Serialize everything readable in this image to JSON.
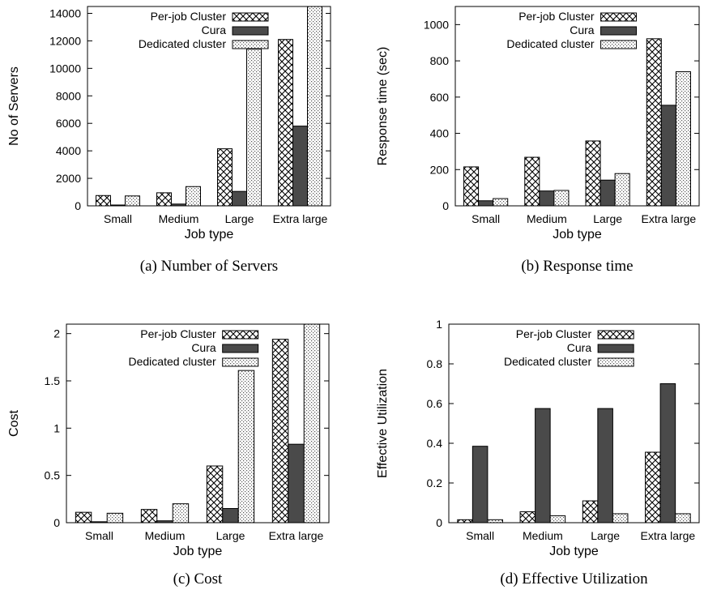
{
  "chart_data": [
    {
      "type": "bar",
      "caption": "(a) Number of Servers",
      "xlabel": "Job type",
      "ylabel": "No of Servers",
      "categories": [
        "Small",
        "Medium",
        "Large",
        "Extra large"
      ],
      "ylim": [
        0,
        14500
      ],
      "yticks": [
        0,
        2000,
        4000,
        6000,
        8000,
        10000,
        12000,
        14000
      ],
      "ytick_labels": [
        "0",
        "2000",
        "4000",
        "6000",
        "8000",
        "10000",
        "12000",
        "14000"
      ],
      "legend_position": "top-left",
      "series": [
        {
          "name": "Per-job Cluster",
          "values": [
            750,
            950,
            4150,
            12100
          ]
        },
        {
          "name": "Cura",
          "values": [
            60,
            130,
            1050,
            5800
          ]
        },
        {
          "name": "Dedicated cluster",
          "values": [
            720,
            1400,
            11400,
            14500
          ]
        }
      ]
    },
    {
      "type": "bar",
      "caption": "(b) Response time",
      "xlabel": "Job type",
      "ylabel": "Response time (sec)",
      "categories": [
        "Small",
        "Medium",
        "Large",
        "Extra large"
      ],
      "ylim": [
        0,
        1100
      ],
      "yticks": [
        0,
        200,
        400,
        600,
        800,
        1000
      ],
      "ytick_labels": [
        "0",
        "200",
        "400",
        "600",
        "800",
        "1000"
      ],
      "legend_position": "top-left",
      "series": [
        {
          "name": "Per-job Cluster",
          "values": [
            215,
            268,
            358,
            922
          ]
        },
        {
          "name": "Cura",
          "values": [
            28,
            82,
            142,
            555
          ]
        },
        {
          "name": "Dedicated cluster",
          "values": [
            40,
            85,
            178,
            740
          ]
        }
      ]
    },
    {
      "type": "bar",
      "caption": "(c) Cost",
      "xlabel": "Job type",
      "ylabel": "Cost",
      "categories": [
        "Small",
        "Medium",
        "Large",
        "Extra large"
      ],
      "ylim": [
        0,
        2.1
      ],
      "yticks": [
        0,
        0.5,
        1,
        1.5,
        2
      ],
      "ytick_labels": [
        "0",
        "0.5",
        "1",
        "1.5",
        "2"
      ],
      "legend_position": "top-left",
      "series": [
        {
          "name": "Per-job Cluster",
          "values": [
            0.11,
            0.14,
            0.6,
            1.94
          ]
        },
        {
          "name": "Cura",
          "values": [
            0.01,
            0.02,
            0.15,
            0.83
          ]
        },
        {
          "name": "Dedicated cluster",
          "values": [
            0.1,
            0.2,
            1.61,
            2.1
          ]
        }
      ]
    },
    {
      "type": "bar",
      "caption": "(d) Effective Utilization",
      "xlabel": "Job type",
      "ylabel": "Effective Utilization",
      "categories": [
        "Small",
        "Medium",
        "Large",
        "Extra large"
      ],
      "ylim": [
        0,
        1
      ],
      "yticks": [
        0,
        0.2,
        0.4,
        0.6,
        0.8,
        1
      ],
      "ytick_labels": [
        "0",
        "0.2",
        "0.4",
        "0.6",
        "0.8",
        "1"
      ],
      "legend_position": "top-left",
      "series": [
        {
          "name": "Per-job Cluster",
          "values": [
            0.015,
            0.055,
            0.11,
            0.355
          ]
        },
        {
          "name": "Cura",
          "values": [
            0.385,
            0.575,
            0.575,
            0.7
          ]
        },
        {
          "name": "Dedicated cluster",
          "values": [
            0.015,
            0.035,
            0.045,
            0.045
          ]
        }
      ]
    }
  ]
}
